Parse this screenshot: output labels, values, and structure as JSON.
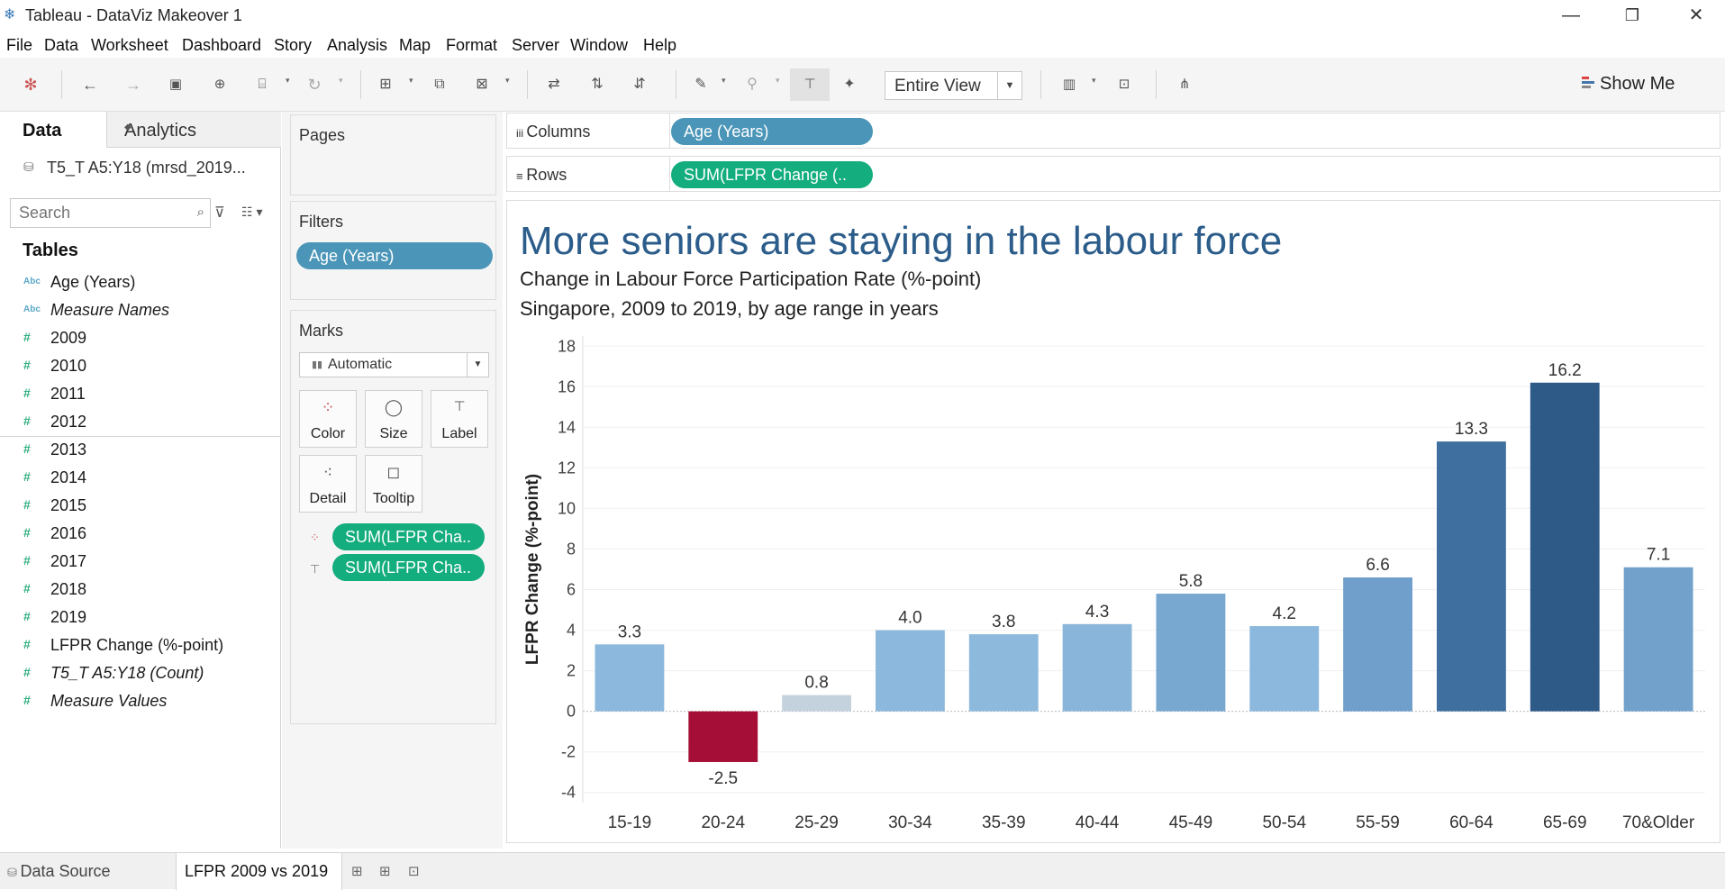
{
  "window": {
    "title": "Tableau - DataViz Makeover 1",
    "minimize": "—",
    "maximize": "❐",
    "close": "✕"
  },
  "menu": [
    "File",
    "Data",
    "Worksheet",
    "Dashboard",
    "Story",
    "Analysis",
    "Map",
    "Format",
    "Server",
    "Window",
    "Help"
  ],
  "toolbar": {
    "fit_label": "Entire View",
    "show_me": "Show Me"
  },
  "datapane": {
    "tab_data": "Data",
    "tab_analytics": "Analytics",
    "datasource": "T5_T A5:Y18 (mrsd_2019...",
    "search_placeholder": "Search",
    "tables_heading": "Tables",
    "dimensions": [
      {
        "type": "Abc",
        "label": "Age (Years)",
        "italic": false
      },
      {
        "type": "Abc",
        "label": "Measure Names",
        "italic": true
      }
    ],
    "measures": [
      {
        "label": "2009",
        "italic": false
      },
      {
        "label": "2010",
        "italic": false
      },
      {
        "label": "2011",
        "italic": false
      },
      {
        "label": "2012",
        "italic": false
      },
      {
        "label": "2013",
        "italic": false
      },
      {
        "label": "2014",
        "italic": false
      },
      {
        "label": "2015",
        "italic": false
      },
      {
        "label": "2016",
        "italic": false
      },
      {
        "label": "2017",
        "italic": false
      },
      {
        "label": "2018",
        "italic": false
      },
      {
        "label": "2019",
        "italic": false
      },
      {
        "label": "LFPR Change (%-point)",
        "italic": false
      },
      {
        "label": "T5_T A5:Y18 (Count)",
        "italic": true
      },
      {
        "label": "Measure Values",
        "italic": true
      }
    ]
  },
  "cards": {
    "pages": "Pages",
    "filters": "Filters",
    "filter_pill": "Age (Years)",
    "marks": "Marks",
    "mark_type": "Automatic",
    "buttons": {
      "color": "Color",
      "size": "Size",
      "label": "Label",
      "detail": "Detail",
      "tooltip": "Tooltip"
    },
    "mark_pill_1": "SUM(LFPR Cha..",
    "mark_pill_2": "SUM(LFPR Cha.."
  },
  "shelves": {
    "columns_label": "Columns",
    "columns_pill": "Age (Years)",
    "rows_label": "Rows",
    "rows_pill": "SUM(LFPR Change (.."
  },
  "viz": {
    "title": "More seniors are staying in the labour force",
    "subtitle1": "Change in Labour Force Participation Rate (%-point)",
    "subtitle2": "Singapore, 2009 to 2019, by age range in years"
  },
  "chart_data": {
    "type": "bar",
    "ylabel": "LFPR Change (%-point)",
    "xlabel": "",
    "ylim": [
      -4.5,
      18.5
    ],
    "yticks": [
      18,
      16,
      14,
      12,
      10,
      8,
      6,
      4,
      2,
      0,
      -2,
      -4
    ],
    "categories": [
      "15-19",
      "20-24",
      "25-29",
      "30-34",
      "35-39",
      "40-44",
      "45-49",
      "50-54",
      "55-59",
      "60-64",
      "65-69",
      "70&Older"
    ],
    "values": [
      3.3,
      -2.5,
      0.8,
      4.0,
      3.8,
      4.3,
      5.8,
      4.2,
      6.6,
      13.3,
      16.2,
      7.1
    ],
    "labels": [
      "3.3",
      "-2.5",
      "0.8",
      "4.0",
      "3.8",
      "4.3",
      "5.8",
      "4.2",
      "6.6",
      "13.3",
      "16.2",
      "7.1"
    ],
    "colors": [
      "#8bb8dc",
      "#a50e36",
      "#c4d2de",
      "#8bb8dc",
      "#8db9dd",
      "#89b5da",
      "#78a8d0",
      "#8bb8dc",
      "#6f9fca",
      "#3f6f9f",
      "#2e5a88",
      "#72a1cb"
    ],
    "grid": true,
    "legend": "none"
  },
  "bottom": {
    "data_source_tab": "Data Source",
    "sheet_tab": "LFPR 2009 vs 2019"
  }
}
